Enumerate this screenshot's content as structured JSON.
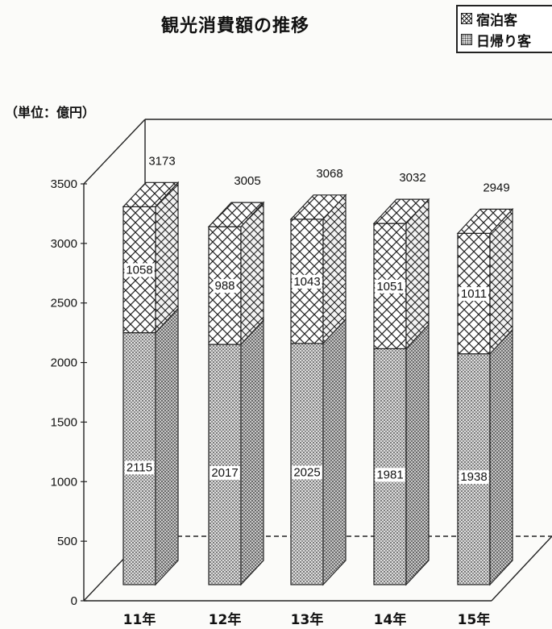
{
  "chart_data": {
    "type": "bar",
    "stacked": true,
    "three_d": true,
    "title": "観光消費額の推移",
    "unit_label": "（単位：億円）",
    "categories": [
      "11年",
      "12年",
      "13年",
      "14年",
      "15年"
    ],
    "series": [
      {
        "name": "日帰り客",
        "values": [
          2115,
          2017,
          2025,
          1981,
          1938
        ],
        "pattern": "dots",
        "color": "#d8d8d8"
      },
      {
        "name": "宿泊客",
        "values": [
          1058,
          988,
          1043,
          1051,
          1011
        ],
        "pattern": "crosshatch",
        "color": "#ffffff"
      }
    ],
    "totals": [
      3173,
      3005,
      3068,
      3032,
      2949
    ],
    "yticks": [
      0,
      500,
      1000,
      1500,
      2000,
      2500,
      3000,
      3500
    ],
    "ylim": [
      0,
      3500
    ],
    "legend_position": "top-right",
    "grid": false
  }
}
